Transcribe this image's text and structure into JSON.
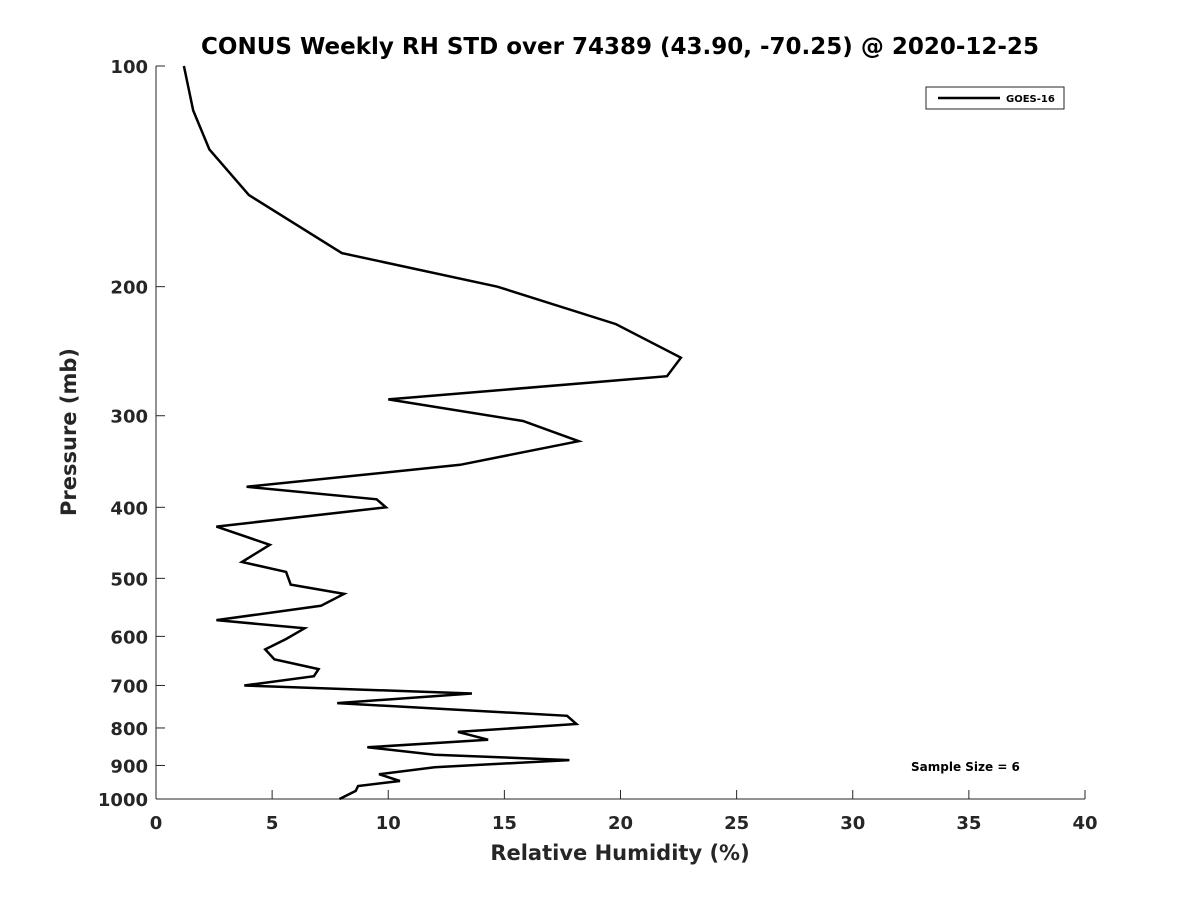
{
  "chart_data": {
    "type": "line",
    "title": "CONUS Weekly RH STD over 74389 (43.90, -70.25) @ 2020-12-25",
    "xlabel": "Relative Humidity (%)",
    "ylabel": "Pressure (mb)",
    "xlim": [
      0,
      40
    ],
    "ylim": [
      100,
      1000
    ],
    "y_scale": "log",
    "y_reversed": true,
    "x_ticks": [
      0,
      5,
      10,
      15,
      20,
      25,
      30,
      35,
      40
    ],
    "y_ticks": [
      100,
      200,
      300,
      400,
      500,
      600,
      700,
      800,
      900,
      1000
    ],
    "grid": false,
    "legend_position": "top-right",
    "series": [
      {
        "name": "GOES-16",
        "color": "#000000",
        "points": [
          [
            1.2,
            100
          ],
          [
            1.6,
            115
          ],
          [
            2.3,
            130
          ],
          [
            4.0,
            150
          ],
          [
            8.0,
            180
          ],
          [
            14.7,
            200
          ],
          [
            19.8,
            225
          ],
          [
            22.6,
            250
          ],
          [
            22.0,
            265
          ],
          [
            10.0,
            285
          ],
          [
            15.8,
            305
          ],
          [
            18.2,
            325
          ],
          [
            13.1,
            350
          ],
          [
            3.9,
            375
          ],
          [
            9.5,
            390
          ],
          [
            9.9,
            400
          ],
          [
            2.6,
            425
          ],
          [
            4.9,
            450
          ],
          [
            3.7,
            475
          ],
          [
            5.6,
            490
          ],
          [
            5.8,
            510
          ],
          [
            8.1,
            525
          ],
          [
            7.1,
            545
          ],
          [
            2.6,
            570
          ],
          [
            6.4,
            585
          ],
          [
            5.6,
            605
          ],
          [
            4.7,
            625
          ],
          [
            5.1,
            645
          ],
          [
            7.0,
            665
          ],
          [
            6.8,
            680
          ],
          [
            3.8,
            700
          ],
          [
            13.6,
            718
          ],
          [
            7.8,
            740
          ],
          [
            17.7,
            770
          ],
          [
            18.1,
            790
          ],
          [
            13.0,
            810
          ],
          [
            14.3,
            830
          ],
          [
            9.1,
            850
          ],
          [
            12.0,
            870
          ],
          [
            17.8,
            885
          ],
          [
            12.0,
            905
          ],
          [
            9.6,
            925
          ],
          [
            10.5,
            945
          ],
          [
            8.7,
            960
          ],
          [
            8.6,
            975
          ],
          [
            7.9,
            1000
          ]
        ]
      }
    ],
    "annotation": "Sample Size = 6"
  }
}
